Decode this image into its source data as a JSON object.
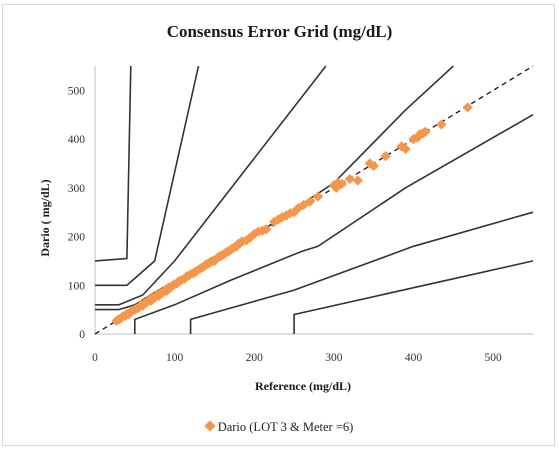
{
  "chart_data": {
    "type": "scatter",
    "title": "Consensus Error Grid (mg/dL)",
    "xlabel": "Reference  (mg/dL)",
    "ylabel": "Dario ( mg/dL)",
    "xlim": [
      0,
      550
    ],
    "ylim": [
      0,
      550
    ],
    "x_ticks": [
      "0",
      "100",
      "200",
      "300",
      "400",
      "500"
    ],
    "y_ticks": [
      "0",
      "100",
      "200",
      "300",
      "400",
      "500"
    ],
    "grid": false,
    "legend_position": "bottom",
    "point_color": "#f79646",
    "zone_line_color": "#333333",
    "identity_line": "dashed",
    "series": [
      {
        "name": "Dario (LOT 3 & Meter =6)",
        "points": [
          [
            27,
            27
          ],
          [
            30,
            30
          ],
          [
            33,
            33
          ],
          [
            35,
            36
          ],
          [
            38,
            37
          ],
          [
            40,
            41
          ],
          [
            42,
            40
          ],
          [
            45,
            45
          ],
          [
            47,
            48
          ],
          [
            50,
            50
          ],
          [
            52,
            52
          ],
          [
            55,
            54
          ],
          [
            58,
            60
          ],
          [
            60,
            58
          ],
          [
            62,
            63
          ],
          [
            65,
            65
          ],
          [
            68,
            70
          ],
          [
            70,
            68
          ],
          [
            72,
            74
          ],
          [
            75,
            75
          ],
          [
            78,
            80
          ],
          [
            80,
            78
          ],
          [
            82,
            84
          ],
          [
            85,
            85
          ],
          [
            88,
            90
          ],
          [
            90,
            88
          ],
          [
            92,
            95
          ],
          [
            95,
            95
          ],
          [
            98,
            100
          ],
          [
            100,
            102
          ],
          [
            103,
            104
          ],
          [
            105,
            108
          ],
          [
            108,
            110
          ],
          [
            112,
            113
          ],
          [
            115,
            118
          ],
          [
            118,
            120
          ],
          [
            122,
            124
          ],
          [
            125,
            126
          ],
          [
            128,
            130
          ],
          [
            132,
            134
          ],
          [
            135,
            137
          ],
          [
            138,
            140
          ],
          [
            140,
            143
          ],
          [
            143,
            145
          ],
          [
            145,
            148
          ],
          [
            148,
            150
          ],
          [
            150,
            150
          ],
          [
            153,
            155
          ],
          [
            155,
            158
          ],
          [
            158,
            160
          ],
          [
            160,
            162
          ],
          [
            163,
            165
          ],
          [
            165,
            168
          ],
          [
            168,
            170
          ],
          [
            170,
            172
          ],
          [
            172,
            175
          ],
          [
            175,
            178
          ],
          [
            178,
            180
          ],
          [
            180,
            185
          ],
          [
            183,
            188
          ],
          [
            185,
            190
          ],
          [
            190,
            192
          ],
          [
            195,
            198
          ],
          [
            200,
            205
          ],
          [
            205,
            210
          ],
          [
            210,
            212
          ],
          [
            215,
            215
          ],
          [
            225,
            230
          ],
          [
            230,
            235
          ],
          [
            235,
            240
          ],
          [
            240,
            243
          ],
          [
            245,
            248
          ],
          [
            250,
            250
          ],
          [
            255,
            258
          ],
          [
            262,
            265
          ],
          [
            270,
            272
          ],
          [
            280,
            282
          ],
          [
            300,
            305
          ],
          [
            303,
            300
          ],
          [
            305,
            310
          ],
          [
            310,
            308
          ],
          [
            320,
            318
          ],
          [
            330,
            315
          ],
          [
            345,
            350
          ],
          [
            350,
            345
          ],
          [
            365,
            365
          ],
          [
            385,
            385
          ],
          [
            390,
            380
          ],
          [
            400,
            400
          ],
          [
            405,
            403
          ],
          [
            408,
            410
          ],
          [
            412,
            412
          ],
          [
            415,
            415
          ],
          [
            435,
            430
          ],
          [
            468,
            465
          ]
        ]
      }
    ],
    "zone_lines": [
      [
        [
          0,
          150
        ],
        [
          40,
          155
        ],
        [
          45,
          550
        ]
      ],
      [
        [
          0,
          100
        ],
        [
          40,
          100
        ],
        [
          75,
          150
        ],
        [
          130,
          550
        ]
      ],
      [
        [
          0,
          60
        ],
        [
          30,
          60
        ],
        [
          60,
          80
        ],
        [
          100,
          150
        ],
        [
          290,
          550
        ]
      ],
      [
        [
          0,
          50
        ],
        [
          30,
          50
        ],
        [
          50,
          60
        ],
        [
          80,
          90
        ],
        [
          130,
          135
        ],
        [
          180,
          180
        ],
        [
          300,
          310
        ],
        [
          390,
          460
        ],
        [
          450,
          550
        ]
      ],
      [
        [
          50,
          0
        ],
        [
          50,
          30
        ],
        [
          100,
          60
        ],
        [
          170,
          110
        ],
        [
          260,
          170
        ],
        [
          280,
          180
        ],
        [
          390,
          300
        ],
        [
          550,
          450
        ]
      ],
      [
        [
          120,
          0
        ],
        [
          120,
          30
        ],
        [
          250,
          90
        ],
        [
          400,
          180
        ],
        [
          550,
          250
        ]
      ],
      [
        [
          250,
          0
        ],
        [
          250,
          40
        ],
        [
          550,
          150
        ]
      ]
    ]
  }
}
